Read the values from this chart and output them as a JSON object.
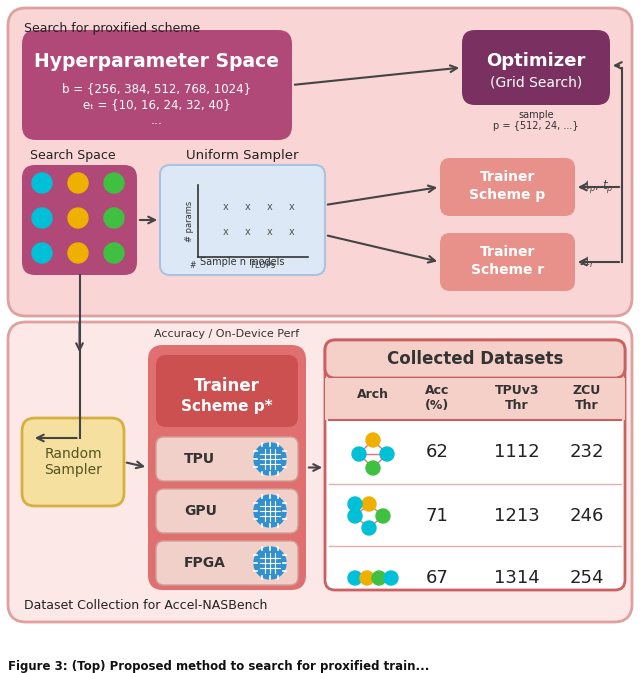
{
  "figure_width": 6.4,
  "figure_height": 6.73,
  "bg_color": "#ffffff",
  "top_panel_bg": "#f9d5d5",
  "top_panel_border": "#e0a0a0",
  "top_panel_label": "Search for proxified scheme",
  "hyperparam_box_bg": "#b04878",
  "hyperparam_box_text": "Hyperparameter Space",
  "hyperparam_box_sub1": "b = {256, 384, 512, 768, 1024}",
  "hyperparam_box_sub2": "eₜ = {10, 16, 24, 32, 40}",
  "hyperparam_box_sub3": "...",
  "optimizer_box_bg": "#7a3060",
  "optimizer_text1": "Optimizer",
  "optimizer_text2": "(Grid Search)",
  "search_space_label": "Search Space",
  "search_space_bg": "#b04878",
  "uniform_sampler_label": "Uniform Sampler",
  "uniform_sampler_bg": "#dce8f5",
  "uniform_sampler_border": "#a8c4e0",
  "trainer_p_bg": "#e8908a",
  "trainer_r_bg": "#e8908a",
  "bottom_panel_bg": "#fce8e6",
  "bottom_panel_border": "#e0a0a0",
  "bottom_panel_label": "Dataset Collection for Accel-NASBench",
  "accuracy_label": "Accuracy / On-Device Perf",
  "trainer_pstar_bg": "#e07070",
  "trainer_pstar_inner": "#cc5050",
  "random_sampler_bg": "#f5e0a0",
  "random_sampler_border": "#d4b040",
  "table_border": "#cc6060",
  "table_title": "Collected Datasets",
  "table_row1": [
    "62",
    "1112",
    "232"
  ],
  "table_row2": [
    "71",
    "1213",
    "246"
  ],
  "table_row3": [
    "67",
    "1314",
    "254"
  ],
  "cyan": "#00c0d8",
  "yellow": "#f0b000",
  "green": "#40c040",
  "pink_edge": "#e87080",
  "caption": "Figure 3: (Top) Proposed method to search for proxified train..."
}
